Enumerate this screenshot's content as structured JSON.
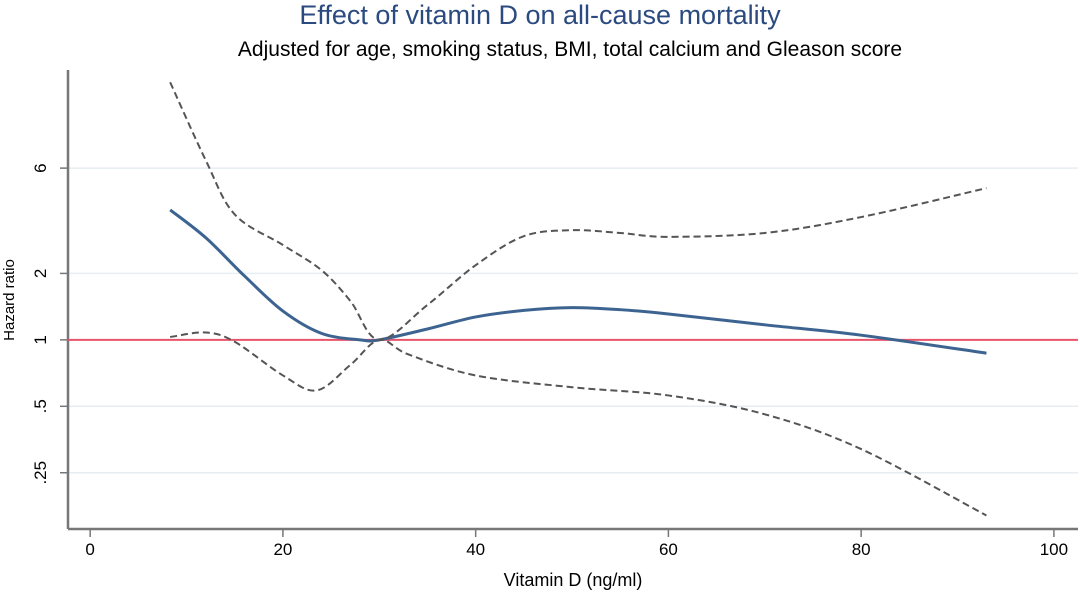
{
  "chart_data": {
    "type": "line",
    "title": "Effect of vitamin D on all-cause mortality",
    "subtitle": "Adjusted for age, smoking status, BMI, total calcium and Gleason score",
    "xlabel": "Vitamin D (ng/ml)",
    "ylabel": "Hazard ratio",
    "xlim": [
      -2.3,
      102.5
    ],
    "ylim": [
      0.139,
      16.7
    ],
    "yscale": "log",
    "x_ticks": [
      0,
      20,
      40,
      60,
      80,
      100
    ],
    "x_tick_labels": [
      "0",
      "20",
      "40",
      "60",
      "80",
      "100"
    ],
    "y_ticks": [
      6,
      2,
      1,
      0.5,
      0.25
    ],
    "y_tick_labels": [
      "6",
      "2",
      "1",
      ".5",
      ".25"
    ],
    "grid": "horizontal",
    "reference_line": {
      "y": 1,
      "color": "#e8546a"
    },
    "series": [
      {
        "style": "solid",
        "color": "#3d6491",
        "x": [
          8.3,
          12,
          16,
          20,
          24,
          28,
          30,
          35,
          40,
          45,
          50,
          55,
          60,
          70,
          80,
          93
        ],
        "y": [
          3.88,
          2.9,
          1.95,
          1.35,
          1.07,
          1.0,
          1.0,
          1.12,
          1.27,
          1.36,
          1.4,
          1.37,
          1.31,
          1.17,
          1.05,
          0.87
        ]
      },
      {
        "style": "dashed",
        "color": "#555555",
        "x": [
          8.3,
          12,
          15,
          20,
          24,
          27,
          30,
          35,
          40,
          45,
          50,
          55,
          60,
          70,
          80,
          93
        ],
        "y": [
          14.7,
          6.5,
          3.7,
          2.69,
          2.07,
          1.5,
          1.0,
          1.44,
          2.18,
          2.95,
          3.14,
          3.05,
          2.93,
          3.05,
          3.6,
          4.87
        ]
      },
      {
        "style": "dashed",
        "color": "#555555",
        "x": [
          8.3,
          12,
          15,
          20,
          23.5,
          27,
          30,
          33,
          40,
          50,
          60,
          70,
          80,
          93
        ],
        "y": [
          1.03,
          1.08,
          0.98,
          0.69,
          0.59,
          0.77,
          1.0,
          0.86,
          0.69,
          0.61,
          0.56,
          0.46,
          0.32,
          0.16
        ]
      }
    ]
  }
}
